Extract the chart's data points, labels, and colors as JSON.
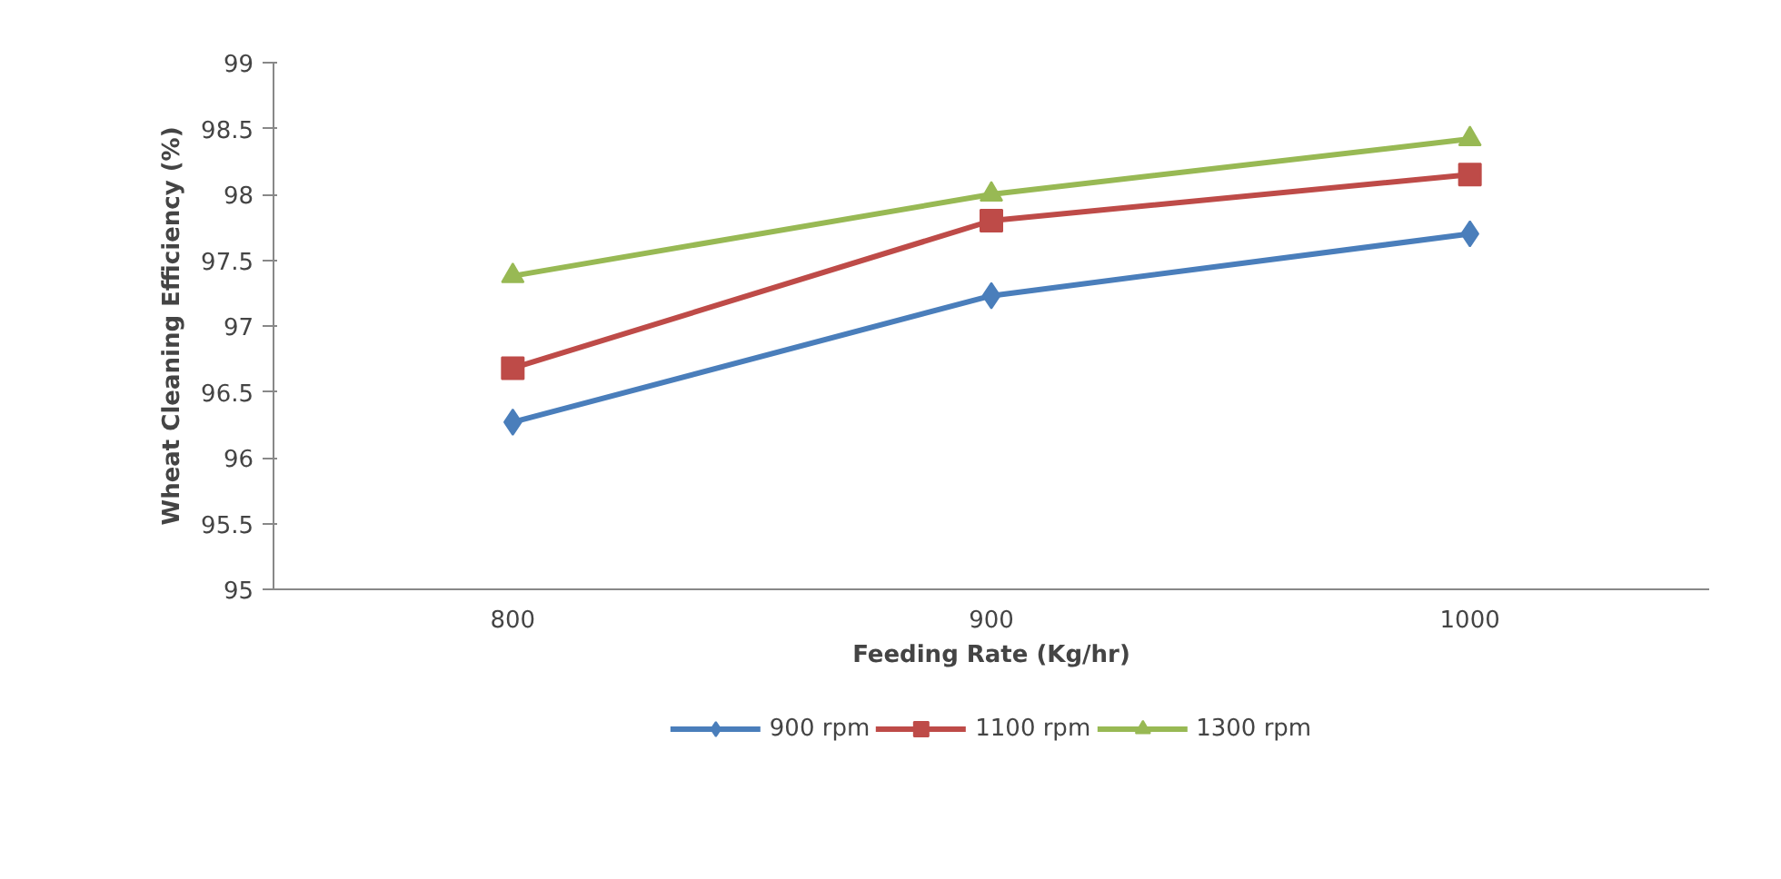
{
  "chart_data": {
    "type": "line",
    "xlabel": "Feeding Rate (Kg/hr)",
    "ylabel": "Wheat Cleaning Efficiency (%)",
    "categories": [
      "800",
      "900",
      "1000"
    ],
    "series": [
      {
        "name": "900 rpm",
        "color": "#4a7ebb",
        "marker": "diamond",
        "values": [
          96.27,
          97.23,
          97.7
        ]
      },
      {
        "name": "1100 rpm",
        "color": "#be4b48",
        "marker": "square",
        "values": [
          96.68,
          97.8,
          98.15
        ]
      },
      {
        "name": "1300 rpm",
        "color": "#98b954",
        "marker": "triangle",
        "values": [
          97.38,
          98.0,
          98.42
        ]
      }
    ],
    "ylim": [
      95,
      99
    ],
    "yticks": [
      95,
      95.5,
      96,
      96.5,
      97,
      97.5,
      98,
      98.5,
      99
    ],
    "grid": false,
    "legend": "bottom",
    "line_style": "solid"
  }
}
